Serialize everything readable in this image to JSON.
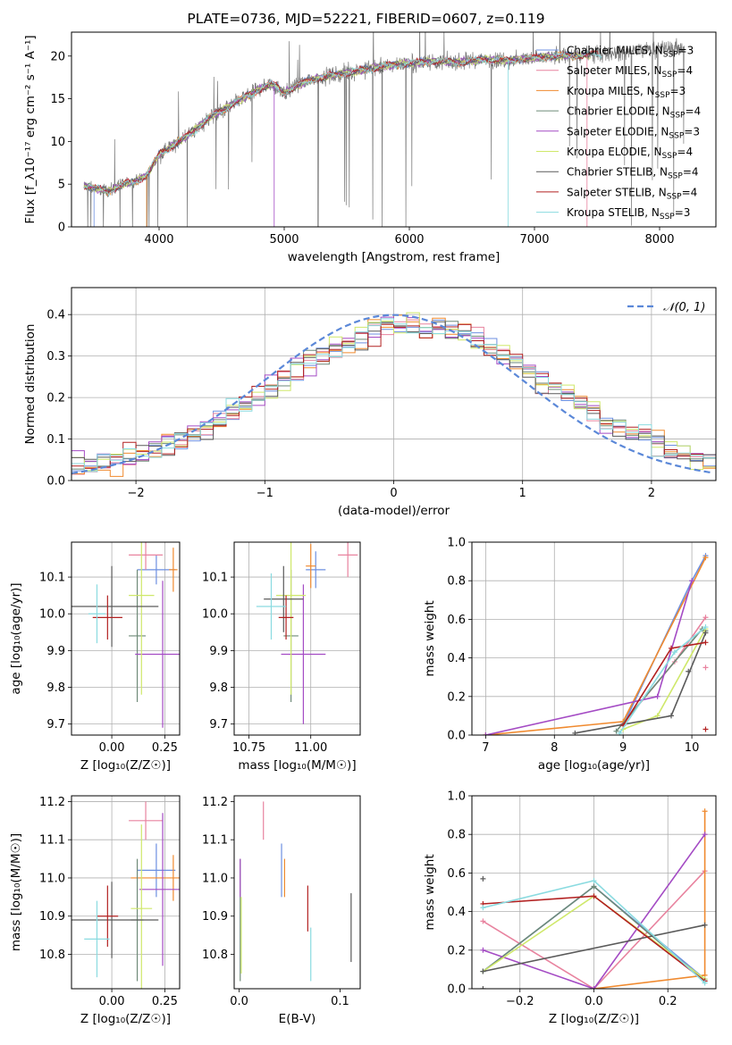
{
  "figure": {
    "title": "PLATE=0736, MJD=52221, FIBERID=0607, z=0.119"
  },
  "colors": {
    "Chabrier MILES": "#6c8fe0",
    "Salpeter MILES": "#e8839f",
    "Kroupa MILES": "#f08a2f",
    "Chabrier ELODIE": "#6e8a78",
    "Salpeter ELODIE": "#a44bc4",
    "Kroupa ELODIE": "#cfe86a",
    "Chabrier STELIB": "#5a5a5a",
    "Salpeter STELIB": "#b22020",
    "Kroupa STELIB": "#8adbe0",
    "data": "#7a7a7a",
    "gauss": "#5b88d8"
  },
  "chart_data": [
    {
      "id": "spectrum",
      "type": "line",
      "xlabel": "wavelength [Angstrom, rest frame]",
      "ylabel": "Flux [f_λ10⁻¹⁷ erg cm⁻² s⁻¹ A⁻¹]",
      "xlim": [
        3300,
        8450
      ],
      "ylim": [
        0,
        22.8
      ],
      "xticks": [
        4000,
        5000,
        6000,
        7000,
        8000
      ],
      "yticks": [
        0,
        5,
        10,
        15,
        20
      ],
      "legend": {
        "placement": "right",
        "entries": [
          "Chabrier MILES, N_SSP=3",
          "Salpeter MILES, N_SSP=4",
          "Kroupa MILES, N_SSP=3",
          "Chabrier ELODIE, N_SSP=4",
          "Salpeter ELODIE, N_SSP=3",
          "Kroupa ELODIE, N_SSP=4",
          "Chabrier STELIB, N_SSP=4",
          "Salpeter STELIB, N_SSP=4",
          "Kroupa STELIB, N_SSP=3"
        ]
      },
      "continuum": {
        "x": [
          3400,
          3500,
          3600,
          3700,
          3800,
          3900,
          4000,
          4100,
          4200,
          4300,
          4400,
          4500,
          4600,
          4700,
          4800,
          4900,
          5000,
          5200,
          5400,
          5600,
          5800,
          6000,
          6200,
          6400,
          6600,
          6800,
          7000,
          7200,
          7400
        ],
        "y": [
          4.8,
          4.5,
          4.2,
          4.9,
          5.3,
          6.0,
          8.5,
          9.4,
          10.4,
          11.5,
          12.8,
          13.6,
          14.5,
          15.3,
          16.1,
          16.8,
          15.7,
          17.2,
          17.8,
          18.3,
          18.8,
          19.2,
          19.4,
          19.3,
          19.6,
          19.5,
          19.8,
          20.0,
          20.1
        ]
      },
      "data_extent": {
        "x": [
          3400,
          8200
        ],
        "y_end": 21.3
      }
    },
    {
      "id": "residuals",
      "type": "step",
      "xlabel": "(data-model)/error",
      "ylabel": "Normed distribution",
      "xlim": [
        -2.5,
        2.5
      ],
      "ylim": [
        0,
        0.465
      ],
      "xticks": [
        -2,
        -1,
        0,
        1,
        2
      ],
      "yticks": [
        0,
        0.1,
        0.2,
        0.3,
        0.4
      ],
      "grid": true,
      "legend": {
        "placement": "top-right",
        "entries": [
          "𝒩(0, 1)"
        ]
      }
    },
    {
      "id": "age_vs_Z",
      "type": "errorbar",
      "xlabel": "Z [log₁₀(Z/Z☉)]",
      "ylabel": "age  [log₁₀(age/yr)]",
      "xlim": [
        -0.19,
        0.32
      ],
      "ylim": [
        9.67,
        10.195
      ],
      "xticks": [
        0.0,
        0.25
      ],
      "xtick_labels": [
        "0.00",
        "0.25"
      ],
      "yticks": [
        9.7,
        9.8,
        9.9,
        10.0,
        10.1
      ],
      "grid": true,
      "points": [
        {
          "model": "Chabrier MILES",
          "x": 0.21,
          "y": 10.12,
          "xerr": 0.09,
          "yerr": 0.04
        },
        {
          "model": "Salpeter MILES",
          "x": 0.16,
          "y": 10.16,
          "xerr": 0.08,
          "yerr": 0.04
        },
        {
          "model": "Kroupa MILES",
          "x": 0.29,
          "y": 10.12,
          "xerr": 0.02,
          "yerr": 0.06
        },
        {
          "model": "Chabrier ELODIE",
          "x": 0.12,
          "y": 9.94,
          "xerr": 0.04,
          "yerr": 0.18
        },
        {
          "model": "Salpeter ELODIE",
          "x": 0.24,
          "y": 9.89,
          "xerr": 0.13,
          "yerr": 0.2
        },
        {
          "model": "Kroupa ELODIE",
          "x": 0.14,
          "y": 10.05,
          "xerr": 0.06,
          "yerr": 0.27
        },
        {
          "model": "Chabrier STELIB",
          "x": 0.0,
          "y": 10.02,
          "xerr": 0.22,
          "yerr": 0.11
        },
        {
          "model": "Salpeter STELIB",
          "x": -0.02,
          "y": 9.99,
          "xerr": 0.07,
          "yerr": 0.06
        },
        {
          "model": "Kroupa STELIB",
          "x": -0.07,
          "y": 10.0,
          "xerr": 0.04,
          "yerr": 0.08
        }
      ]
    },
    {
      "id": "age_vs_mass",
      "type": "errorbar",
      "xlabel": "mass [log₁₀(M/M☉)]",
      "xlim": [
        10.69,
        11.2
      ],
      "ylim": [
        9.67,
        10.195
      ],
      "xticks": [
        10.75,
        11.0
      ],
      "xtick_labels": [
        "10.75",
        "11.00"
      ],
      "yticks": [
        9.7,
        9.8,
        9.9,
        10.0,
        10.1
      ],
      "grid": true,
      "points": [
        {
          "model": "Chabrier MILES",
          "x": 11.02,
          "y": 10.12,
          "xerr": 0.04,
          "yerr": 0.05
        },
        {
          "model": "Salpeter MILES",
          "x": 11.15,
          "y": 10.16,
          "xerr": 0.04,
          "yerr": 0.06
        },
        {
          "model": "Kroupa MILES",
          "x": 11.0,
          "y": 10.13,
          "xerr": 0.02,
          "yerr": 0.06
        },
        {
          "model": "Chabrier ELODIE",
          "x": 10.92,
          "y": 9.94,
          "xerr": 0.03,
          "yerr": 0.18
        },
        {
          "model": "Salpeter ELODIE",
          "x": 10.97,
          "y": 9.89,
          "xerr": 0.09,
          "yerr": 0.19
        },
        {
          "model": "Kroupa ELODIE",
          "x": 10.92,
          "y": 10.05,
          "xerr": 0.06,
          "yerr": 0.27
        },
        {
          "model": "Chabrier STELIB",
          "x": 10.89,
          "y": 10.04,
          "xerr": 0.08,
          "yerr": 0.09
        },
        {
          "model": "Salpeter STELIB",
          "x": 10.9,
          "y": 9.99,
          "xerr": 0.03,
          "yerr": 0.06
        },
        {
          "model": "Kroupa STELIB",
          "x": 10.84,
          "y": 10.02,
          "xerr": 0.06,
          "yerr": 0.09
        }
      ]
    },
    {
      "id": "mass_weight_vs_age",
      "type": "line",
      "xlabel": "age  [log₁₀(age/yr)]",
      "ylabel": "mass weight",
      "xlim": [
        6.8,
        10.35
      ],
      "ylim": [
        0,
        1.0
      ],
      "xticks": [
        7,
        8,
        9,
        10
      ],
      "yticks": [
        0.0,
        0.2,
        0.4,
        0.6,
        0.8,
        1.0
      ],
      "grid": true,
      "series": [
        {
          "model": "Chabrier MILES",
          "x": [
            9.0,
            10.0,
            10.2
          ],
          "y": [
            0.05,
            0.8,
            0.93
          ]
        },
        {
          "model": "Salpeter MILES",
          "x": [
            9.0,
            9.75,
            10.2
          ],
          "y": [
            0.06,
            0.38,
            0.61
          ]
        },
        {
          "model": "Kroupa MILES",
          "x": [
            7.0,
            9.0,
            10.2
          ],
          "y": [
            0.0,
            0.07,
            0.92
          ]
        },
        {
          "model": "Chabrier ELODIE",
          "x": [
            8.9,
            10.15,
            10.2
          ],
          "y": [
            0.02,
            0.55,
            0.54
          ]
        },
        {
          "model": "Salpeter ELODIE",
          "x": [
            7.0,
            9.5,
            10.0
          ],
          "y": [
            0.0,
            0.2,
            0.8
          ]
        },
        {
          "model": "Kroupa ELODIE",
          "x": [
            9.0,
            9.5,
            10.2
          ],
          "y": [
            0.03,
            0.1,
            0.55
          ]
        },
        {
          "model": "Chabrier STELIB",
          "x": [
            8.3,
            9.7,
            10.2
          ],
          "y": [
            0.01,
            0.1,
            0.53
          ]
        },
        {
          "model": "Salpeter STELIB",
          "x": [
            9.0,
            9.7,
            10.2
          ],
          "y": [
            0.05,
            0.45,
            0.48
          ]
        },
        {
          "model": "Kroupa STELIB",
          "x": [
            8.95,
            9.75,
            10.2
          ],
          "y": [
            0.01,
            0.43,
            0.56
          ]
        }
      ],
      "extra_markers": [
        {
          "model": "Chabrier STELIB",
          "x": 9.95,
          "y": 0.33
        },
        {
          "model": "Salpeter STELIB",
          "x": 10.2,
          "y": 0.03
        },
        {
          "model": "Salpeter MILES",
          "x": 10.2,
          "y": 0.35
        }
      ]
    },
    {
      "id": "mass_vs_Z",
      "type": "errorbar",
      "xlabel": "Z [log₁₀(Z/Z☉)]",
      "ylabel": "mass [log₁₀(M/M☉)]",
      "xlim": [
        -0.19,
        0.32
      ],
      "ylim": [
        10.71,
        11.215
      ],
      "xticks": [
        0.0,
        0.25
      ],
      "xtick_labels": [
        "0.00",
        "0.25"
      ],
      "yticks": [
        10.8,
        10.9,
        11.0,
        11.1,
        11.2
      ],
      "grid": true,
      "points": [
        {
          "model": "Chabrier MILES",
          "x": 0.21,
          "y": 11.02,
          "xerr": 0.09,
          "yerr": 0.07
        },
        {
          "model": "Salpeter MILES",
          "x": 0.16,
          "y": 11.15,
          "xerr": 0.08,
          "yerr": 0.05
        },
        {
          "model": "Kroupa MILES",
          "x": 0.29,
          "y": 11.0,
          "xerr": 0.2,
          "yerr": 0.06
        },
        {
          "model": "Chabrier ELODIE",
          "x": 0.12,
          "y": 10.89,
          "xerr": 0.03,
          "yerr": 0.16
        },
        {
          "model": "Salpeter ELODIE",
          "x": 0.24,
          "y": 10.97,
          "xerr": 0.11,
          "yerr": 0.2
        },
        {
          "model": "Kroupa ELODIE",
          "x": 0.14,
          "y": 10.92,
          "xerr": 0.05,
          "yerr": 0.22
        },
        {
          "model": "Chabrier STELIB",
          "x": 0.0,
          "y": 10.89,
          "xerr": 0.22,
          "yerr": 0.1
        },
        {
          "model": "Salpeter STELIB",
          "x": -0.02,
          "y": 10.9,
          "xerr": 0.05,
          "yerr": 0.08
        },
        {
          "model": "Kroupa STELIB",
          "x": -0.07,
          "y": 10.84,
          "xerr": 0.06,
          "yerr": 0.1
        }
      ]
    },
    {
      "id": "mass_vs_ebv",
      "type": "errorbar",
      "xlabel": "E(B-V)",
      "xlim": [
        -0.005,
        0.12
      ],
      "ylim": [
        10.71,
        11.215
      ],
      "xticks": [
        0.0,
        0.1
      ],
      "xtick_labels": [
        "0.0",
        "0.1"
      ],
      "yticks": [
        10.8,
        10.9,
        11.0,
        11.1,
        11.2
      ],
      "grid": false,
      "points": [
        {
          "model": "Chabrier MILES",
          "x": 0.042,
          "y": 11.02,
          "xerr": 0.0,
          "yerr": 0.07
        },
        {
          "model": "Salpeter MILES",
          "x": 0.024,
          "y": 11.15,
          "xerr": 0.0,
          "yerr": 0.05
        },
        {
          "model": "Kroupa MILES",
          "x": 0.045,
          "y": 11.0,
          "xerr": 0.0,
          "yerr": 0.05
        },
        {
          "model": "Chabrier ELODIE",
          "x": 0.001,
          "y": 10.89,
          "xerr": 0.0,
          "yerr": 0.16
        },
        {
          "model": "Salpeter ELODIE",
          "x": 0.001,
          "y": 11.0,
          "xerr": 0.0,
          "yerr": 0.05
        },
        {
          "model": "Kroupa ELODIE",
          "x": 0.002,
          "y": 10.85,
          "xerr": 0.0,
          "yerr": 0.1
        },
        {
          "model": "Chabrier STELIB",
          "x": 0.111,
          "y": 10.87,
          "xerr": 0.0,
          "yerr": 0.09
        },
        {
          "model": "Salpeter STELIB",
          "x": 0.068,
          "y": 10.92,
          "xerr": 0.0,
          "yerr": 0.06
        },
        {
          "model": "Kroupa STELIB",
          "x": 0.071,
          "y": 10.8,
          "xerr": 0.0,
          "yerr": 0.07
        }
      ]
    },
    {
      "id": "mass_weight_vs_Z",
      "type": "line",
      "xlabel": "Z [log₁₀(Z/Z☉)]",
      "ylabel": "mass weight",
      "xlim": [
        -0.33,
        0.33
      ],
      "ylim": [
        0,
        1.0
      ],
      "xticks": [
        -0.2,
        0.0,
        0.2
      ],
      "xtick_labels": [
        "−0.2",
        "0.0",
        "0.2"
      ],
      "yticks": [
        0.0,
        0.2,
        0.4,
        0.6,
        0.8,
        1.0
      ],
      "grid": true,
      "series": [
        {
          "model": "Chabrier MILES",
          "x": [
            -0.3,
            0.0,
            0.3
          ],
          "y": [
            0.09,
            0.53,
            0.05
          ]
        },
        {
          "model": "Salpeter MILES",
          "x": [
            -0.3,
            0.0,
            0.3
          ],
          "y": [
            0.35,
            0.0,
            0.61
          ]
        },
        {
          "model": "Kroupa MILES",
          "x": [
            0.0,
            0.3,
            0.3
          ],
          "y": [
            0.0,
            0.07,
            0.92
          ]
        },
        {
          "model": "Chabrier ELODIE",
          "x": [
            -0.3,
            0.0,
            0.3
          ],
          "y": [
            0.09,
            0.53,
            0.04
          ]
        },
        {
          "model": "Salpeter ELODIE",
          "x": [
            -0.3,
            0.0,
            0.3
          ],
          "y": [
            0.2,
            0.0,
            0.8
          ]
        },
        {
          "model": "Kroupa ELODIE",
          "x": [
            -0.3,
            0.0,
            0.3
          ],
          "y": [
            0.09,
            0.48,
            0.05
          ]
        },
        {
          "model": "Chabrier STELIB",
          "x": [
            -0.3,
            0.3
          ],
          "y": [
            0.09,
            0.33
          ]
        },
        {
          "model": "Salpeter STELIB",
          "x": [
            -0.3,
            0.0,
            0.3
          ],
          "y": [
            0.44,
            0.48,
            0.04
          ]
        },
        {
          "model": "Kroupa STELIB",
          "x": [
            -0.3,
            0.0,
            0.3
          ],
          "y": [
            0.42,
            0.56,
            0.03
          ]
        }
      ],
      "extra_markers": [
        {
          "model": "Chabrier STELIB",
          "x": -0.3,
          "y": 0.57
        },
        {
          "model": "Chabrier STELIB",
          "x": -0.3,
          "y": 0.0
        }
      ]
    }
  ]
}
